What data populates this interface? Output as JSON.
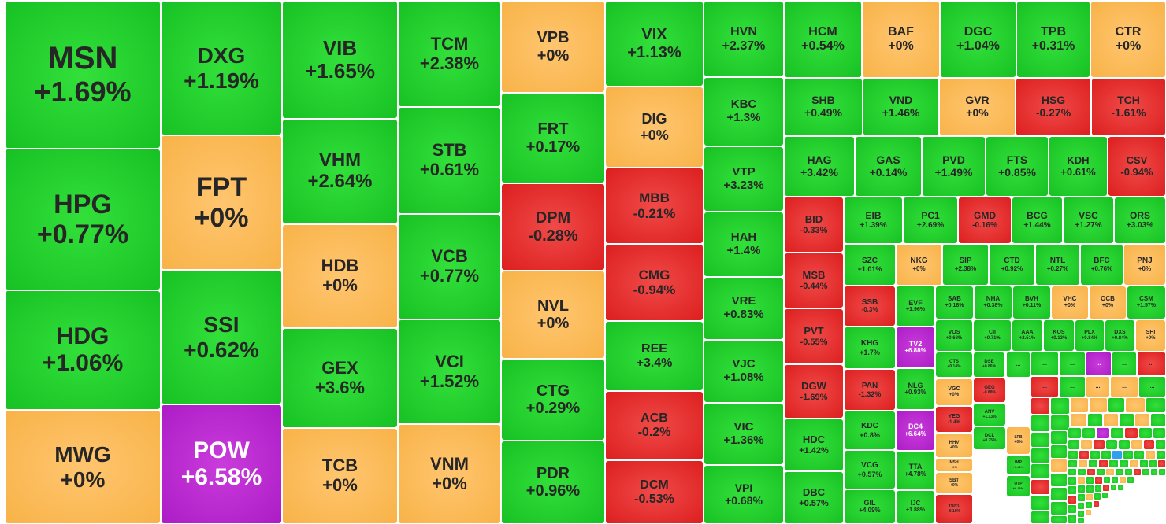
{
  "colors": {
    "up": "#1ec92b",
    "flat": "#f9b84f",
    "down": "#e32826",
    "ceiling": "#b724cd"
  },
  "chart_data": {
    "type": "treemap",
    "items": [
      {
        "ticker": "MSN",
        "change": "+1.69%",
        "color": "up"
      },
      {
        "ticker": "HPG",
        "change": "+0.77%",
        "color": "up"
      },
      {
        "ticker": "HDG",
        "change": "+1.06%",
        "color": "up"
      },
      {
        "ticker": "MWG",
        "change": "+0%",
        "color": "flat"
      },
      {
        "ticker": "DXG",
        "change": "+1.19%",
        "color": "up"
      },
      {
        "ticker": "FPT",
        "change": "+0%",
        "color": "flat"
      },
      {
        "ticker": "SSI",
        "change": "+0.62%",
        "color": "up"
      },
      {
        "ticker": "POW",
        "change": "+6.58%",
        "color": "ceiling"
      },
      {
        "ticker": "VIB",
        "change": "+1.65%",
        "color": "up"
      },
      {
        "ticker": "VHM",
        "change": "+2.64%",
        "color": "up"
      },
      {
        "ticker": "HDB",
        "change": "+0%",
        "color": "flat"
      },
      {
        "ticker": "GEX",
        "change": "+3.6%",
        "color": "up"
      },
      {
        "ticker": "TCB",
        "change": "+0%",
        "color": "flat"
      },
      {
        "ticker": "TCM",
        "change": "+2.38%",
        "color": "up"
      },
      {
        "ticker": "STB",
        "change": "+0.61%",
        "color": "up"
      },
      {
        "ticker": "VCB",
        "change": "+0.77%",
        "color": "up"
      },
      {
        "ticker": "VCI",
        "change": "+1.52%",
        "color": "up"
      },
      {
        "ticker": "VNM",
        "change": "+0%",
        "color": "flat"
      },
      {
        "ticker": "VPB",
        "change": "+0%",
        "color": "flat"
      },
      {
        "ticker": "FRT",
        "change": "+0.17%",
        "color": "up"
      },
      {
        "ticker": "DPM",
        "change": "-0.28%",
        "color": "down"
      },
      {
        "ticker": "NVL",
        "change": "+0%",
        "color": "flat"
      },
      {
        "ticker": "CTG",
        "change": "+0.29%",
        "color": "up"
      },
      {
        "ticker": "PDR",
        "change": "+0.96%",
        "color": "up"
      },
      {
        "ticker": "VIX",
        "change": "+1.13%",
        "color": "up"
      },
      {
        "ticker": "DIG",
        "change": "+0%",
        "color": "flat"
      },
      {
        "ticker": "MBB",
        "change": "-0.21%",
        "color": "down"
      },
      {
        "ticker": "CMG",
        "change": "-0.94%",
        "color": "down"
      },
      {
        "ticker": "REE",
        "change": "+3.4%",
        "color": "up"
      },
      {
        "ticker": "ACB",
        "change": "-0.2%",
        "color": "down"
      },
      {
        "ticker": "DCM",
        "change": "-0.53%",
        "color": "down"
      },
      {
        "ticker": "HVN",
        "change": "+2.37%",
        "color": "up"
      },
      {
        "ticker": "KBC",
        "change": "+1.3%",
        "color": "up"
      },
      {
        "ticker": "VTP",
        "change": "+3.23%",
        "color": "up"
      },
      {
        "ticker": "HAH",
        "change": "+1.4%",
        "color": "up"
      },
      {
        "ticker": "VRE",
        "change": "+0.83%",
        "color": "up"
      },
      {
        "ticker": "VJC",
        "change": "+1.08%",
        "color": "up"
      },
      {
        "ticker": "VIC",
        "change": "+1.36%",
        "color": "up"
      },
      {
        "ticker": "VPI",
        "change": "+0.68%",
        "color": "up"
      },
      {
        "ticker": "HCM",
        "change": "+0.54%",
        "color": "up"
      },
      {
        "ticker": "BAF",
        "change": "+0%",
        "color": "flat"
      },
      {
        "ticker": "DGC",
        "change": "+1.04%",
        "color": "up"
      },
      {
        "ticker": "TPB",
        "change": "+0.31%",
        "color": "up"
      },
      {
        "ticker": "CTR",
        "change": "+0%",
        "color": "flat"
      },
      {
        "ticker": "SHB",
        "change": "+0.49%",
        "color": "up"
      },
      {
        "ticker": "VND",
        "change": "+1.46%",
        "color": "up"
      },
      {
        "ticker": "GVR",
        "change": "+0%",
        "color": "flat"
      },
      {
        "ticker": "HSG",
        "change": "-0.27%",
        "color": "down"
      },
      {
        "ticker": "TCH",
        "change": "-1.61%",
        "color": "down"
      },
      {
        "ticker": "HAG",
        "change": "+3.42%",
        "color": "up"
      },
      {
        "ticker": "GAS",
        "change": "+0.14%",
        "color": "up"
      },
      {
        "ticker": "PVD",
        "change": "+1.49%",
        "color": "up"
      },
      {
        "ticker": "FTS",
        "change": "+0.85%",
        "color": "up"
      },
      {
        "ticker": "KDH",
        "change": "+0.61%",
        "color": "up"
      },
      {
        "ticker": "CSV",
        "change": "-0.94%",
        "color": "down"
      },
      {
        "ticker": "BID",
        "change": "-0.33%",
        "color": "down"
      },
      {
        "ticker": "MSB",
        "change": "-0.44%",
        "color": "down"
      },
      {
        "ticker": "PVT",
        "change": "-0.55%",
        "color": "down"
      },
      {
        "ticker": "DGW",
        "change": "-1.69%",
        "color": "down"
      },
      {
        "ticker": "HDC",
        "change": "+1.42%",
        "color": "up"
      },
      {
        "ticker": "DBC",
        "change": "+0.57%",
        "color": "up"
      },
      {
        "ticker": "EIB",
        "change": "+1.39%",
        "color": "up"
      },
      {
        "ticker": "PC1",
        "change": "+2.69%",
        "color": "up"
      },
      {
        "ticker": "GMD",
        "change": "-0.16%",
        "color": "down"
      },
      {
        "ticker": "BCG",
        "change": "+1.44%",
        "color": "up"
      },
      {
        "ticker": "VSC",
        "change": "+1.27%",
        "color": "up"
      },
      {
        "ticker": "ORS",
        "change": "+3.03%",
        "color": "up"
      },
      {
        "ticker": "SZC",
        "change": "+1.01%",
        "color": "up"
      },
      {
        "ticker": "NKG",
        "change": "+0%",
        "color": "flat"
      },
      {
        "ticker": "SIP",
        "change": "+2.38%",
        "color": "up"
      },
      {
        "ticker": "CTD",
        "change": "+0.92%",
        "color": "up"
      },
      {
        "ticker": "NTL",
        "change": "+0.27%",
        "color": "up"
      },
      {
        "ticker": "BFC",
        "change": "+0.76%",
        "color": "up"
      },
      {
        "ticker": "PNJ",
        "change": "+0%",
        "color": "flat"
      },
      {
        "ticker": "SSB",
        "change": "-0.3%",
        "color": "down"
      },
      {
        "ticker": "EVF",
        "change": "+1.96%",
        "color": "up"
      },
      {
        "ticker": "SAB",
        "change": "+0.18%",
        "color": "up"
      },
      {
        "ticker": "NHA",
        "change": "+0.38%",
        "color": "up"
      },
      {
        "ticker": "BVH",
        "change": "+0.11%",
        "color": "up"
      },
      {
        "ticker": "VHC",
        "change": "+0%",
        "color": "flat"
      },
      {
        "ticker": "OCB",
        "change": "+0%",
        "color": "flat"
      },
      {
        "ticker": "CSM",
        "change": "+1.57%",
        "color": "up"
      },
      {
        "ticker": "KHG",
        "change": "+1.7%",
        "color": "up"
      },
      {
        "ticker": "TV2",
        "change": "+6.88%",
        "color": "ceiling"
      },
      {
        "ticker": "VOS",
        "change": "+0.68%",
        "color": "up"
      },
      {
        "ticker": "CII",
        "change": "+0.71%",
        "color": "up"
      },
      {
        "ticker": "AAA",
        "change": "+2.51%",
        "color": "up"
      },
      {
        "ticker": "KOS",
        "change": "+0.13%",
        "color": "up"
      },
      {
        "ticker": "PLX",
        "change": "+0.84%",
        "color": "up"
      },
      {
        "ticker": "DXS",
        "change": "+0.84%",
        "color": "up"
      },
      {
        "ticker": "SHI",
        "change": "+0%",
        "color": "flat"
      },
      {
        "ticker": "PAN",
        "change": "-1.32%",
        "color": "down"
      },
      {
        "ticker": "NLG",
        "change": "+0.93%",
        "color": "up"
      },
      {
        "ticker": "CTS",
        "change": "+0.14%",
        "color": "up"
      },
      {
        "ticker": "DSE",
        "change": "+0.86%",
        "color": "up"
      },
      {
        "ticker": "BMP",
        "change": "-1.68%",
        "color": "down"
      },
      {
        "ticker": "KDC",
        "change": "+0.8%",
        "color": "up"
      },
      {
        "ticker": "DC4",
        "change": "+6.64%",
        "color": "ceiling"
      },
      {
        "ticker": "VGC",
        "change": "+0%",
        "color": "flat"
      },
      {
        "ticker": "GEG",
        "change": "-0.88%",
        "color": "down"
      },
      {
        "ticker": "ANV",
        "change": "+1.13%",
        "color": "up"
      },
      {
        "ticker": "VCG",
        "change": "+0.57%",
        "color": "up"
      },
      {
        "ticker": "TTA",
        "change": "+4.78%",
        "color": "up"
      },
      {
        "ticker": "YEG",
        "change": "-1.4%",
        "color": "down"
      },
      {
        "ticker": "HHV",
        "change": "+0%",
        "color": "flat"
      },
      {
        "ticker": "DCL",
        "change": "+0.75%",
        "color": "up"
      },
      {
        "ticker": "LPB",
        "change": "+0%",
        "color": "flat"
      },
      {
        "ticker": "MSH",
        "change": "+0%",
        "color": "flat"
      },
      {
        "ticker": "IMP",
        "change": "+0.41%",
        "color": "up"
      },
      {
        "ticker": "GIL",
        "change": "+4.09%",
        "color": "up"
      },
      {
        "ticker": "IJC",
        "change": "+1.88%",
        "color": "up"
      },
      {
        "ticker": "SBT",
        "change": "+0%",
        "color": "flat"
      },
      {
        "ticker": "QTP",
        "change": "+0.13%",
        "color": "up"
      },
      {
        "ticker": "DPG",
        "change": "-0.18%",
        "color": "down"
      }
    ]
  },
  "overflow_label": "..."
}
